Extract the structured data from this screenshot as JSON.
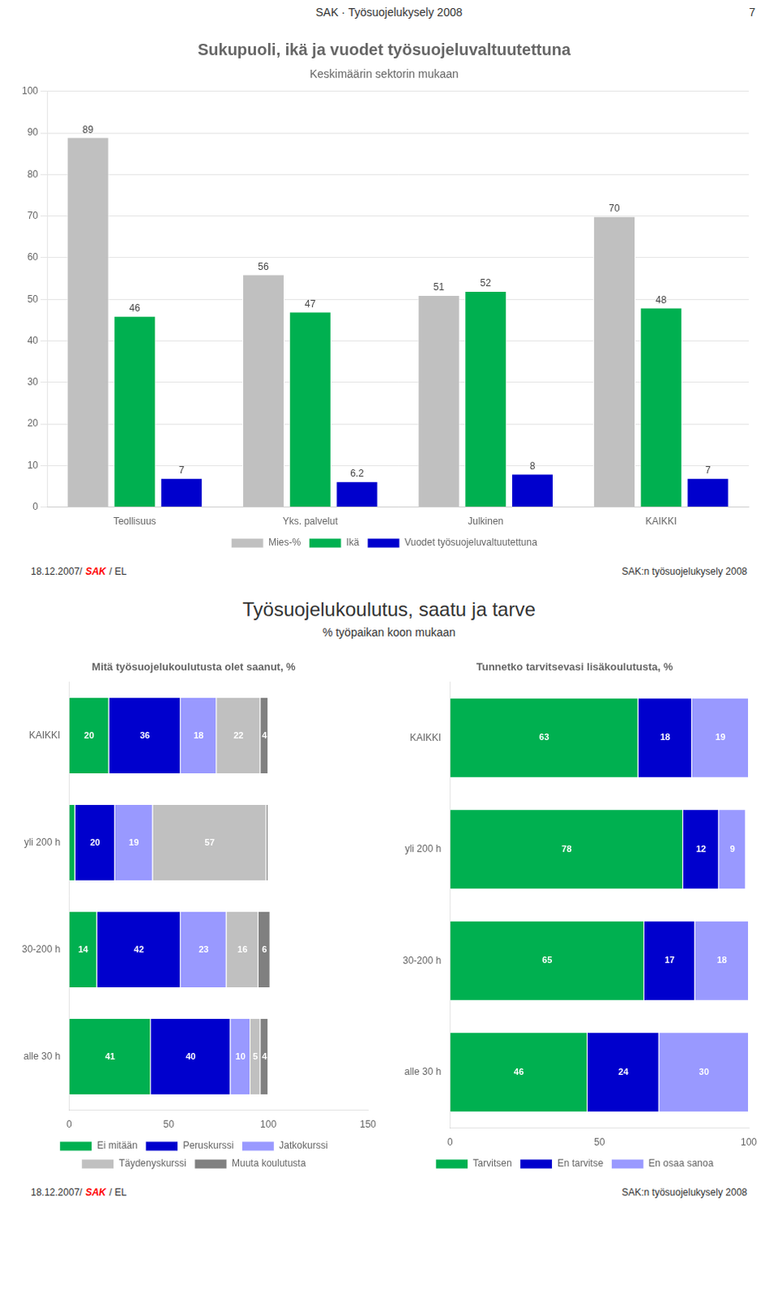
{
  "page_header": "SAK · Työsuojelukysely 2008",
  "page_number": "7",
  "footer": [
    {
      "text": "18.12.2007/"
    },
    {
      "text": "SAK",
      "color": "red"
    },
    {
      "text": "/ EL"
    }
  ],
  "footer_note": "SAK:n työsuojelukysely 2008",
  "heading": "Työsuojelukoulutus, saatu ja tarve",
  "subheading": "% työpaikan koon mukaan",
  "chart_data": [
    {
      "type": "bar",
      "title": "Sukupuoli, ikä ja vuodet työsuojeluvaltuutettuna",
      "subtitle": "Keskimäärin sektorin mukaan",
      "categories": [
        "Teollisuus",
        "Yks. palvelut",
        "Julkinen",
        "KAIKKI"
      ],
      "series": [
        {
          "name": "Mies-%",
          "color": "#c0c0c0",
          "values": [
            89,
            56,
            51,
            70
          ]
        },
        {
          "name": "Ikä",
          "color": "#00b050",
          "values": [
            46,
            47,
            52,
            48
          ]
        },
        {
          "name": "Vuodet työsuojeluvaltuutettuna",
          "color": "#0000cd",
          "values": [
            7,
            6.2,
            8,
            7
          ]
        }
      ],
      "ylim": [
        0,
        100
      ],
      "yticks": [
        0,
        10,
        20,
        30,
        40,
        50,
        60,
        70,
        80,
        90,
        100
      ],
      "grid": true,
      "legend": "bottom",
      "data_labels": true
    },
    {
      "type": "bar",
      "orientation": "horizontal",
      "stacked": true,
      "title": "Mitä työsuojelukoulutusta olet saanut, %",
      "categories": [
        "KAIKKI",
        "yli 200 h",
        "30-200 h",
        "alle 30 h"
      ],
      "series": [
        {
          "name": "Ei mitään",
          "color": "#00b050",
          "values": [
            20,
            3,
            14,
            41
          ],
          "value_labels": [
            "20",
            null,
            "14",
            "41"
          ]
        },
        {
          "name": "Peruskurssi",
          "color": "#0000cd",
          "values": [
            36,
            20,
            42,
            40
          ]
        },
        {
          "name": "Jatkokurssi",
          "color": "#9999ff",
          "values": [
            18,
            19,
            23,
            10
          ]
        },
        {
          "name": "Täydenyskurssi",
          "color": "#c0c0c0",
          "values": [
            22,
            57,
            16,
            5
          ]
        },
        {
          "name": "Muuta koulutusta",
          "color": "#808080",
          "values": [
            4,
            1,
            6,
            4
          ],
          "value_labels": [
            "4",
            null,
            "6",
            "4"
          ]
        }
      ],
      "xlim": [
        0,
        150
      ],
      "xticks": [
        0,
        50,
        100,
        150
      ],
      "grid": false,
      "legend": "bottom",
      "data_labels": true
    },
    {
      "type": "bar",
      "orientation": "horizontal",
      "stacked": true,
      "title": "Tunnetko tarvitsevasi lisäkoulutusta, %",
      "categories": [
        "KAIKKI",
        "yli 200 h",
        "30-200 h",
        "alle 30 h"
      ],
      "series": [
        {
          "name": "Tarvitsen",
          "color": "#00b050",
          "values": [
            63,
            78,
            65,
            46
          ]
        },
        {
          "name": "En tarvitse",
          "color": "#0000cd",
          "values": [
            18,
            12,
            17,
            24
          ]
        },
        {
          "name": "En osaa sanoa",
          "color": "#9999ff",
          "values": [
            19,
            9,
            18,
            30
          ]
        }
      ],
      "xlim": [
        0,
        100
      ],
      "xticks": [
        0,
        50,
        100
      ],
      "grid": false,
      "legend": "bottom",
      "data_labels": true
    }
  ]
}
